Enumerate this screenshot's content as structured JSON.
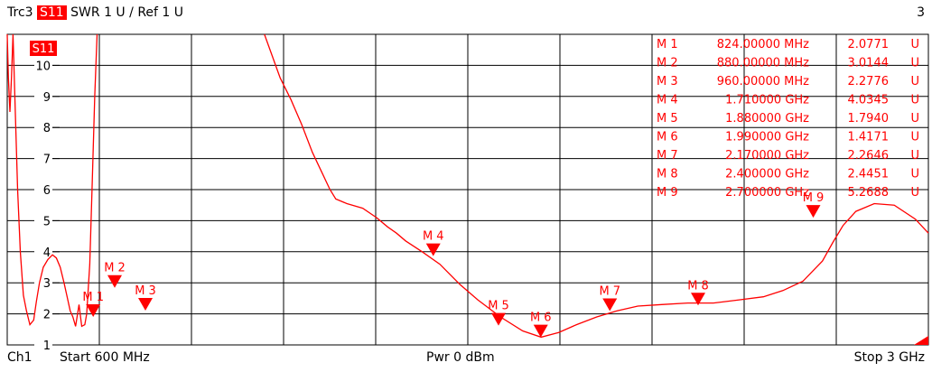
{
  "header": {
    "trace": "Trc3",
    "parameter": "S11",
    "format": "SWR",
    "scale": "1 U /",
    "ref": "Ref 1 U",
    "channel_index": "3"
  },
  "footer": {
    "channel": "Ch1",
    "start": "Start  600 MHz",
    "power": "Pwr  0 dBm",
    "stop": "Stop  3 GHz"
  },
  "trace_tag": "S11",
  "colors": {
    "trace": "#ff0000",
    "grid": "#000000",
    "background": "#ffffff"
  },
  "chart_data": {
    "type": "line",
    "title": "",
    "xlabel": "",
    "ylabel": "",
    "x_unit": "GHz",
    "y_unit": "U",
    "xlim": [
      0.6,
      3.0
    ],
    "ylim": [
      1,
      11
    ],
    "y_ticks": [
      1,
      2,
      3,
      4,
      5,
      6,
      7,
      8,
      9,
      10
    ],
    "grid": true,
    "series": [
      {
        "name": "S11",
        "segments": [
          [
            [
              0.6,
              11.0
            ],
            [
              0.603,
              9.6
            ],
            [
              0.607,
              8.5
            ],
            [
              0.611,
              9.6
            ],
            [
              0.615,
              11.0
            ],
            [
              0.627,
              6.0
            ],
            [
              0.634,
              4.0
            ],
            [
              0.642,
              2.6
            ],
            [
              0.65,
              2.1
            ],
            [
              0.659,
              1.65
            ],
            [
              0.669,
              1.8
            ],
            [
              0.676,
              2.4
            ],
            [
              0.684,
              3.0
            ],
            [
              0.694,
              3.5
            ],
            [
              0.706,
              3.75
            ],
            [
              0.718,
              3.9
            ],
            [
              0.728,
              3.8
            ],
            [
              0.738,
              3.5
            ],
            [
              0.748,
              3.0
            ],
            [
              0.757,
              2.5
            ],
            [
              0.764,
              2.1
            ],
            [
              0.771,
              1.9
            ],
            [
              0.778,
              1.6
            ],
            [
              0.787,
              2.3
            ],
            [
              0.794,
              1.6
            ],
            [
              0.802,
              1.65
            ],
            [
              0.807,
              2.0
            ],
            [
              0.815,
              3.6
            ],
            [
              0.821,
              6.0
            ],
            [
              0.828,
              9.0
            ],
            [
              0.834,
              11.0
            ]
          ],
          [
            [
              1.27,
              11.0
            ],
            [
              1.311,
              9.6
            ],
            [
              1.339,
              8.9
            ],
            [
              1.367,
              8.1
            ],
            [
              1.395,
              7.2
            ],
            [
              1.422,
              6.5
            ],
            [
              1.441,
              6.0
            ],
            [
              1.456,
              5.7
            ],
            [
              1.485,
              5.55
            ],
            [
              1.526,
              5.4
            ],
            [
              1.562,
              5.1
            ],
            [
              1.591,
              4.8
            ],
            [
              1.614,
              4.6
            ],
            [
              1.638,
              4.35
            ],
            [
              1.681,
              4.0
            ],
            [
              1.727,
              3.6
            ],
            [
              1.779,
              2.95
            ],
            [
              1.826,
              2.45
            ],
            [
              1.885,
              1.9
            ],
            [
              1.943,
              1.45
            ],
            [
              1.991,
              1.25
            ],
            [
              2.037,
              1.4
            ],
            [
              2.083,
              1.65
            ],
            [
              2.136,
              1.9
            ],
            [
              2.189,
              2.1
            ],
            [
              2.243,
              2.25
            ],
            [
              2.305,
              2.3
            ],
            [
              2.373,
              2.35
            ],
            [
              2.44,
              2.35
            ],
            [
              2.507,
              2.45
            ],
            [
              2.57,
              2.55
            ],
            [
              2.621,
              2.75
            ],
            [
              2.673,
              3.05
            ],
            [
              2.724,
              3.7
            ],
            [
              2.751,
              4.3
            ],
            [
              2.778,
              4.85
            ],
            [
              2.811,
              5.3
            ],
            [
              2.859,
              5.55
            ],
            [
              2.911,
              5.5
            ],
            [
              2.966,
              5.05
            ],
            [
              3.0,
              4.6
            ]
          ]
        ]
      }
    ],
    "markers": [
      {
        "name": "M 1",
        "freq": "824.00000 MHz",
        "x": 0.824,
        "value": "2.0771",
        "y": 2.0771,
        "unit": "U"
      },
      {
        "name": "M 2",
        "freq": "880.00000 MHz",
        "x": 0.88,
        "value": "3.0144",
        "y": 3.0144,
        "unit": "U"
      },
      {
        "name": "M 3",
        "freq": "960.00000 MHz",
        "x": 0.96,
        "value": "2.2776",
        "y": 2.2776,
        "unit": "U"
      },
      {
        "name": "M 4",
        "freq": "1.710000 GHz",
        "x": 1.71,
        "value": "4.0345",
        "y": 4.0345,
        "unit": "U"
      },
      {
        "name": "M 5",
        "freq": "1.880000 GHz",
        "x": 1.88,
        "value": "1.7940",
        "y": 1.794,
        "unit": "U"
      },
      {
        "name": "M 6",
        "freq": "1.990000 GHz",
        "x": 1.99,
        "value": "1.4171",
        "y": 1.4171,
        "unit": "U"
      },
      {
        "name": "M 7",
        "freq": "2.170000 GHz",
        "x": 2.17,
        "value": "2.2646",
        "y": 2.2646,
        "unit": "U"
      },
      {
        "name": "M 8",
        "freq": "2.400000 GHz",
        "x": 2.4,
        "value": "2.4451",
        "y": 2.4451,
        "unit": "U"
      },
      {
        "name": "M 9",
        "freq": "2.700000 GHz",
        "x": 2.7,
        "value": "5.2688",
        "y": 5.2688,
        "unit": "U"
      }
    ]
  }
}
